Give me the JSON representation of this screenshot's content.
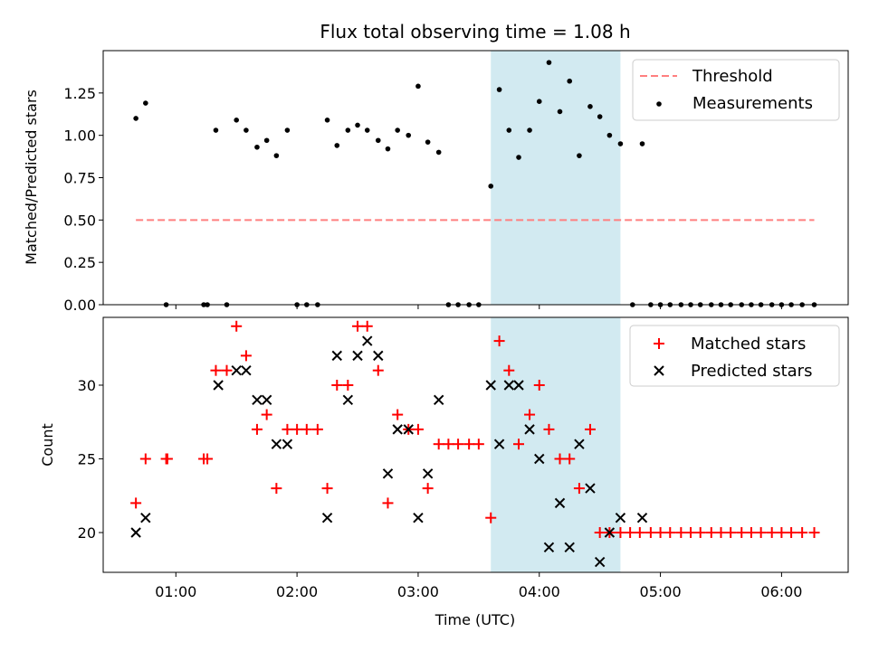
{
  "figure": {
    "title": "Flux total observing time = 1.08 h",
    "xlabel": "Time (UTC)"
  },
  "colors": {
    "threshold": "#ff7f7f",
    "shade": "#add8e6",
    "matched": "#ff0000",
    "predicted": "#000000",
    "measurement": "#000000"
  },
  "chart_data": [
    {
      "type": "scatter",
      "name": "ratio-panel",
      "ylabel": "Matched/Predicted stars",
      "xlim": [
        0.4,
        6.55
      ],
      "ylim": [
        0,
        1.5
      ],
      "yticks": [
        0.0,
        0.25,
        0.5,
        0.75,
        1.0,
        1.25
      ],
      "ytick_labels": [
        "0.00",
        "0.25",
        "0.50",
        "0.75",
        "1.00",
        "1.25"
      ],
      "shaded_span": [
        3.6,
        4.67
      ],
      "legend_position": "top-right",
      "threshold": {
        "label": "Threshold",
        "value": 0.5,
        "x": [
          0.67,
          6.27
        ]
      },
      "series": [
        {
          "name": "Measurements",
          "marker": "dot",
          "x": [
            0.67,
            0.75,
            0.92,
            1.23,
            1.26,
            1.33,
            1.42,
            1.5,
            1.58,
            1.67,
            1.75,
            1.83,
            1.92,
            2.0,
            2.08,
            2.17,
            2.25,
            2.33,
            2.42,
            2.5,
            2.58,
            2.67,
            2.75,
            2.83,
            2.92,
            3.0,
            3.08,
            3.17,
            3.25,
            3.33,
            3.42,
            3.5,
            3.6,
            3.67,
            3.75,
            3.83,
            3.92,
            4.0,
            4.08,
            4.17,
            4.25,
            4.33,
            4.42,
            4.5,
            4.58,
            4.67,
            4.77,
            4.85,
            4.92,
            5.0,
            5.08,
            5.17,
            5.25,
            5.33,
            5.42,
            5.5,
            5.58,
            5.67,
            5.75,
            5.83,
            5.92,
            6.0,
            6.08,
            6.17,
            6.27
          ],
          "y": [
            1.1,
            1.19,
            0,
            0,
            0,
            1.03,
            0,
            1.09,
            1.03,
            0.93,
            0.97,
            0.88,
            1.03,
            0,
            0,
            0,
            1.09,
            0.94,
            1.03,
            1.06,
            1.03,
            0.97,
            0.92,
            1.03,
            1.0,
            1.29,
            0.96,
            0.9,
            0,
            0,
            0,
            0,
            0.7,
            1.27,
            1.03,
            0.87,
            1.03,
            1.2,
            1.43,
            1.14,
            1.32,
            0.88,
            1.17,
            1.11,
            1.0,
            0.95,
            0,
            0.95,
            0,
            0,
            0,
            0,
            0,
            0,
            0,
            0,
            0,
            0,
            0,
            0,
            0,
            0,
            0,
            0,
            0
          ]
        }
      ]
    },
    {
      "type": "scatter",
      "name": "count-panel",
      "ylabel": "Count",
      "xlim": [
        0.4,
        6.55
      ],
      "ylim": [
        17.3,
        34.6
      ],
      "yticks": [
        20,
        25,
        30
      ],
      "ytick_labels": [
        "20",
        "25",
        "30"
      ],
      "xticks": [
        1,
        2,
        3,
        4,
        5,
        6
      ],
      "xtick_labels": [
        "01:00",
        "02:00",
        "03:00",
        "04:00",
        "05:00",
        "06:00"
      ],
      "shaded_span": [
        3.6,
        4.67
      ],
      "legend_position": "top-right",
      "series": [
        {
          "name": "Matched stars",
          "marker": "plus",
          "x": [
            0.67,
            0.75,
            0.92,
            0.93,
            1.23,
            1.26,
            1.33,
            1.42,
            1.5,
            1.58,
            1.67,
            1.75,
            1.83,
            1.92,
            2.0,
            2.08,
            2.17,
            2.25,
            2.33,
            2.42,
            2.5,
            2.58,
            2.67,
            2.75,
            2.83,
            2.92,
            3.0,
            3.08,
            3.17,
            3.25,
            3.33,
            3.42,
            3.5,
            3.6,
            3.67,
            3.75,
            3.83,
            3.92,
            4.0,
            4.08,
            4.17,
            4.25,
            4.33,
            4.42,
            4.5,
            4.58,
            4.67,
            4.75,
            4.83,
            4.92,
            5.0,
            5.08,
            5.17,
            5.25,
            5.33,
            5.42,
            5.5,
            5.58,
            5.67,
            5.75,
            5.83,
            5.92,
            6.0,
            6.08,
            6.17,
            6.27
          ],
          "y": [
            22,
            25,
            25,
            25,
            25,
            25,
            31,
            31,
            34,
            32,
            27,
            28,
            23,
            27,
            27,
            27,
            27,
            23,
            30,
            30,
            34,
            34,
            31,
            22,
            28,
            27,
            27,
            23,
            26,
            26,
            26,
            26,
            26,
            21,
            33,
            31,
            26,
            28,
            30,
            27,
            25,
            25,
            23,
            27,
            20,
            20,
            20,
            20,
            20,
            20,
            20,
            20,
            20,
            20,
            20,
            20,
            20,
            20,
            20,
            20,
            20,
            20,
            20,
            20,
            20,
            20
          ]
        },
        {
          "name": "Predicted stars",
          "marker": "x",
          "x": [
            0.67,
            0.75,
            1.35,
            1.5,
            1.58,
            1.67,
            1.75,
            1.83,
            1.92,
            2.25,
            2.33,
            2.42,
            2.5,
            2.58,
            2.67,
            2.75,
            2.83,
            2.92,
            3.0,
            3.08,
            3.17,
            3.6,
            3.67,
            3.75,
            3.83,
            3.92,
            4.0,
            4.08,
            4.17,
            4.25,
            4.33,
            4.42,
            4.5,
            4.58,
            4.67,
            4.85
          ],
          "y": [
            20,
            21,
            30,
            31,
            31,
            29,
            29,
            26,
            26,
            21,
            32,
            29,
            32,
            33,
            32,
            24,
            27,
            27,
            21,
            24,
            29,
            30,
            26,
            30,
            30,
            27,
            25,
            19,
            22,
            19,
            26,
            23,
            18,
            20,
            21,
            21
          ]
        }
      ]
    }
  ]
}
